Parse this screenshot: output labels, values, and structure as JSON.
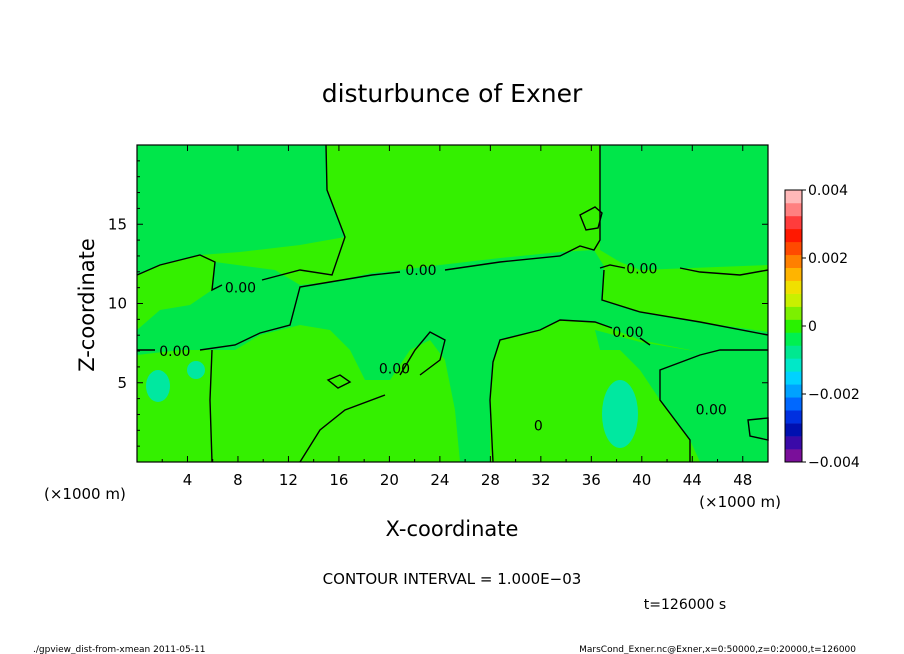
{
  "chart_data": {
    "type": "heatmap",
    "title": "disturbunce of Exner",
    "xlabel": "X-coordinate",
    "ylabel": "Z-coordinate",
    "x_unit_left": "(×1000 m)",
    "x_unit_right": "(×1000 m)",
    "xlim": [
      0,
      50
    ],
    "ylim": [
      0,
      20
    ],
    "x_ticks": [
      4,
      8,
      12,
      16,
      20,
      24,
      28,
      32,
      36,
      40,
      44,
      48
    ],
    "x_tick_labels": [
      "4",
      "8",
      "12",
      "16",
      "20",
      "24",
      "28",
      "32",
      "36",
      "40",
      "44",
      "48"
    ],
    "y_ticks": [
      5,
      10,
      15
    ],
    "y_tick_labels": [
      "5",
      "10",
      "15"
    ],
    "contour_labels": [
      {
        "text": "0.00",
        "x": 8.2,
        "z": 11.0
      },
      {
        "text": "0.00",
        "x": 22.5,
        "z": 12.1
      },
      {
        "text": "0.00",
        "x": 40.0,
        "z": 12.2
      },
      {
        "text": "0.00",
        "x": 3.0,
        "z": 7.0
      },
      {
        "text": "0.00",
        "x": 38.9,
        "z": 8.2
      },
      {
        "text": "0.00",
        "x": 20.4,
        "z": 5.9
      },
      {
        "text": "0.00",
        "x": 45.5,
        "z": 3.3
      },
      {
        "text": "0",
        "x": 31.8,
        "z": 2.3
      }
    ],
    "colorbar": {
      "min": -0.004,
      "max": 0.004,
      "labels": [
        "0.004",
        "0.002",
        "0",
        "−0.002",
        "−0.004"
      ],
      "label_values": [
        0.004,
        0.002,
        0,
        -0.002,
        -0.004
      ],
      "colors": [
        "#7a0f9a",
        "#3a0aa8",
        "#0010b0",
        "#0030e0",
        "#0068ff",
        "#00a2ff",
        "#00d2ff",
        "#00e8c8",
        "#00e890",
        "#00f050",
        "#29f200",
        "#7cf000",
        "#c8f000",
        "#f0e000",
        "#ffb400",
        "#ff8000",
        "#ff4a00",
        "#ff1800",
        "#ff3c3c",
        "#ff8080",
        "#ffb8b8"
      ]
    },
    "contour_interval_text": "CONTOUR INTERVAL = 1.000E−03",
    "time_text": "t=126000 s",
    "footer_left": "./gpview_dist-from-xmean  2011-05-11",
    "footer_right": "MarsCond_Exner.nc@Exner,x=0:50000,z=0:20000,t=126000",
    "fill_colors": {
      "positive": "#34f000",
      "negative": "#00e64a",
      "weak_negative": "#14ee34"
    }
  }
}
